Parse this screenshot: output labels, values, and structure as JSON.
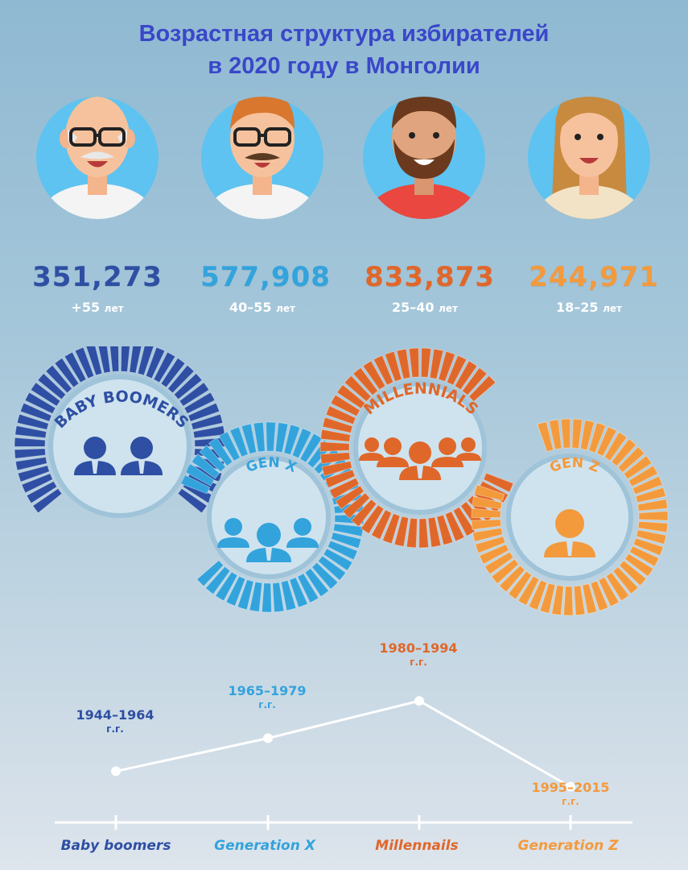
{
  "title": {
    "line1": "Возрастная структура избирателей",
    "line2": "в 2020 году в Монголии"
  },
  "colors": {
    "baby_boomers": "#2e4fa3",
    "gen_x": "#33a3dc",
    "millennials": "#e0672a",
    "gen_z": "#f39a3d",
    "title": "#3a47c9"
  },
  "groups": [
    {
      "value_text": "351,273",
      "age_label": "+55",
      "age_unit": "лет",
      "ring_label": "BABY BOOMERS",
      "axis_label": "Baby boomers",
      "period": "1944–1964",
      "period_suffix": "г.г."
    },
    {
      "value_text": "577,908",
      "age_label": "40–55",
      "age_unit": "лет",
      "ring_label": "GEN X",
      "axis_label": "Generation X",
      "period": "1965–1979",
      "period_suffix": "г.г."
    },
    {
      "value_text": "833,873",
      "age_label": "25–40",
      "age_unit": "лет",
      "ring_label": "MILLENNIALS",
      "axis_label": "Millennails",
      "period": "1980–1994",
      "period_suffix": "г.г."
    },
    {
      "value_text": "244,971",
      "age_label": "18–25",
      "age_unit": "лет",
      "ring_label": "GEN Z",
      "axis_label": "Generation Z",
      "period": "1995–2015",
      "period_suffix": "г.г."
    }
  ],
  "chart_data": {
    "type": "line",
    "categories": [
      "Baby boomers",
      "Generation X",
      "Millennails",
      "Generation Z"
    ],
    "values": [
      351273,
      577908,
      833873,
      244971
    ],
    "x_periods": [
      "1944–1964",
      "1965–1979",
      "1980–1994",
      "1995–2015"
    ],
    "ylim": [
      0,
      1000000
    ],
    "grid": false,
    "legend": "none"
  }
}
